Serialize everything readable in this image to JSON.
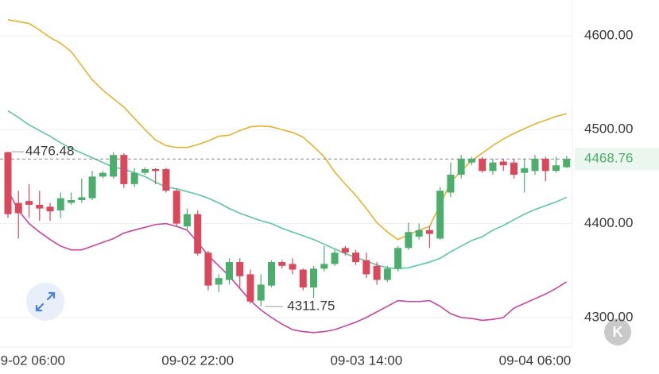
{
  "chart_data": {
    "type": "candlestick",
    "categories": [
      null,
      null,
      "09-02 06:00",
      null,
      null,
      null,
      null,
      null,
      null,
      null,
      null,
      null,
      null,
      null,
      null,
      null,
      null,
      null,
      "09-02 22:00",
      null,
      null,
      null,
      null,
      null,
      null,
      null,
      null,
      null,
      null,
      null,
      null,
      null,
      null,
      null,
      "09-03 14:00",
      null,
      null,
      null,
      null,
      null,
      null,
      null,
      null,
      null,
      null,
      null,
      null,
      null,
      null,
      null,
      "09-04 06:00",
      null,
      null,
      null
    ],
    "open": [
      4476,
      4422,
      4424,
      4420,
      4418,
      4414,
      4422,
      4425,
      4427,
      4450,
      4450,
      4473,
      4442,
      4454,
      4458,
      4458,
      4435,
      4397,
      4410,
      4369,
      4335,
      4340,
      4359,
      4346,
      4318,
      4334,
      4359,
      4357,
      4351,
      4332,
      4352,
      4357,
      4374,
      4369,
      4361,
      4355,
      4340,
      4352,
      4374,
      4386,
      4393,
      4384,
      4433,
      4452,
      4465,
      4469,
      4456,
      4466,
      4465,
      4454,
      4456,
      4469,
      4456,
      4460
    ],
    "high": [
      4476.48,
      4435,
      4442,
      4435,
      4422,
      4433,
      4433,
      4448,
      4456,
      4456,
      4476,
      4475,
      4459,
      4460,
      4459,
      4459,
      4437,
      4416,
      4414,
      4371,
      4346,
      4363,
      4363,
      4351,
      4346,
      4361,
      4361,
      4363,
      4352,
      4355,
      4376,
      4372,
      4376,
      4372,
      4369,
      4359,
      4355,
      4376,
      4401,
      4400,
      4397,
      4439,
      4465,
      4473,
      4471,
      4471,
      4469,
      4469,
      4469,
      4469,
      4473,
      4471,
      4471,
      4472
    ],
    "low": [
      4406,
      4384,
      4406,
      4403,
      4403,
      4406,
      4420,
      4422,
      4425,
      4448,
      4448,
      4438,
      4439,
      4452,
      4442,
      4433,
      4397,
      4393,
      4366,
      4329,
      4327,
      4335,
      4332,
      4315,
      4311.75,
      4332,
      4352,
      4346,
      4329,
      4321,
      4349,
      4355,
      4366,
      4356,
      4342,
      4335,
      4338,
      4349,
      4372,
      4383,
      4374,
      4383,
      4428,
      4448,
      4462,
      4454,
      4452,
      4456,
      4448,
      4433,
      4452,
      4445,
      4454,
      4459
    ],
    "close": [
      4410,
      4411,
      4420,
      4416,
      4413,
      4427,
      4425,
      4428,
      4450,
      4454,
      4473,
      4442,
      4454,
      4458,
      4456,
      4435,
      4400,
      4410,
      4368,
      4334,
      4342,
      4359,
      4344,
      4317,
      4335,
      4359,
      4355,
      4351,
      4332,
      4352,
      4357,
      4369,
      4369,
      4359,
      4346,
      4340,
      4352,
      4374,
      4391,
      4393,
      4389,
      4435,
      4452,
      4469,
      4469,
      4456,
      4465,
      4462,
      4452,
      4459,
      4469,
      4456,
      4462,
      4468.76
    ],
    "up_color": "#4cae6c",
    "down_color": "#d9485b",
    "overlays": [
      {
        "color": "#e5b232",
        "values": [
          4617,
          4615,
          4613,
          4606,
          4598,
          4592,
          4583,
          4568,
          4553,
          4542,
          4533,
          4524,
          4512,
          4500,
          4489,
          4483,
          4481,
          4481,
          4484,
          4488,
          4493,
          4494,
          4499,
          4503,
          4504,
          4503,
          4500,
          4497,
          4492,
          4482,
          4471,
          4455,
          4442,
          4430,
          4416,
          4401,
          4391,
          4383,
          4388,
          4393,
          4397,
          4420,
          4444,
          4456,
          4467,
          4475,
          4483,
          4490,
          4496,
          4501,
          4506,
          4510,
          4514,
          4517
        ]
      },
      {
        "color": "#5cc6a8",
        "values": [
          4520,
          4513,
          4505,
          4499,
          4493,
          4486,
          4480,
          4475,
          4470,
          4465,
          4460,
          4458,
          4454,
          4450,
          4444,
          4439,
          4437,
          4434,
          4431,
          4427,
          4422,
          4416,
          4411,
          4407,
          4403,
          4400,
          4395,
          4391,
          4387,
          4383,
          4378,
          4373,
          4368,
          4364,
          4360,
          4356,
          4353,
          4352,
          4353,
          4356,
          4359,
          4363,
          4370,
          4376,
          4382,
          4386,
          4393,
          4398,
          4404,
          4410,
          4415,
          4419,
          4423,
          4428
        ]
      },
      {
        "color": "#c8459e",
        "values": [
          4435,
          4414,
          4400,
          4391,
          4383,
          4376,
          4372,
          4372,
          4376,
          4380,
          4384,
          4390,
          4393,
          4396,
          4399,
          4400,
          4397,
          4393,
          4380,
          4366,
          4355,
          4344,
          4331,
          4318,
          4308,
          4300,
          4293,
          4287,
          4285,
          4284,
          4285,
          4287,
          4291,
          4295,
          4300,
          4306,
          4312,
          4318,
          4317,
          4317,
          4318,
          4312,
          4304,
          4300,
          4299,
          4297,
          4298,
          4300,
          4310,
          4315,
          4320,
          4325,
          4331,
          4338
        ]
      }
    ],
    "max_marker": 4476.48,
    "min_marker": 4311.75,
    "last_price": 4468.76,
    "ylim": [
      4268.6,
      4638
    ],
    "yticks": [
      {
        "value": 4300,
        "label": "4300.00"
      },
      {
        "value": 4400,
        "label": "4400.00"
      },
      {
        "value": 4500,
        "label": "4500.00"
      },
      {
        "value": 4600,
        "label": "4600.00"
      }
    ],
    "grid": true,
    "badge": "K"
  }
}
